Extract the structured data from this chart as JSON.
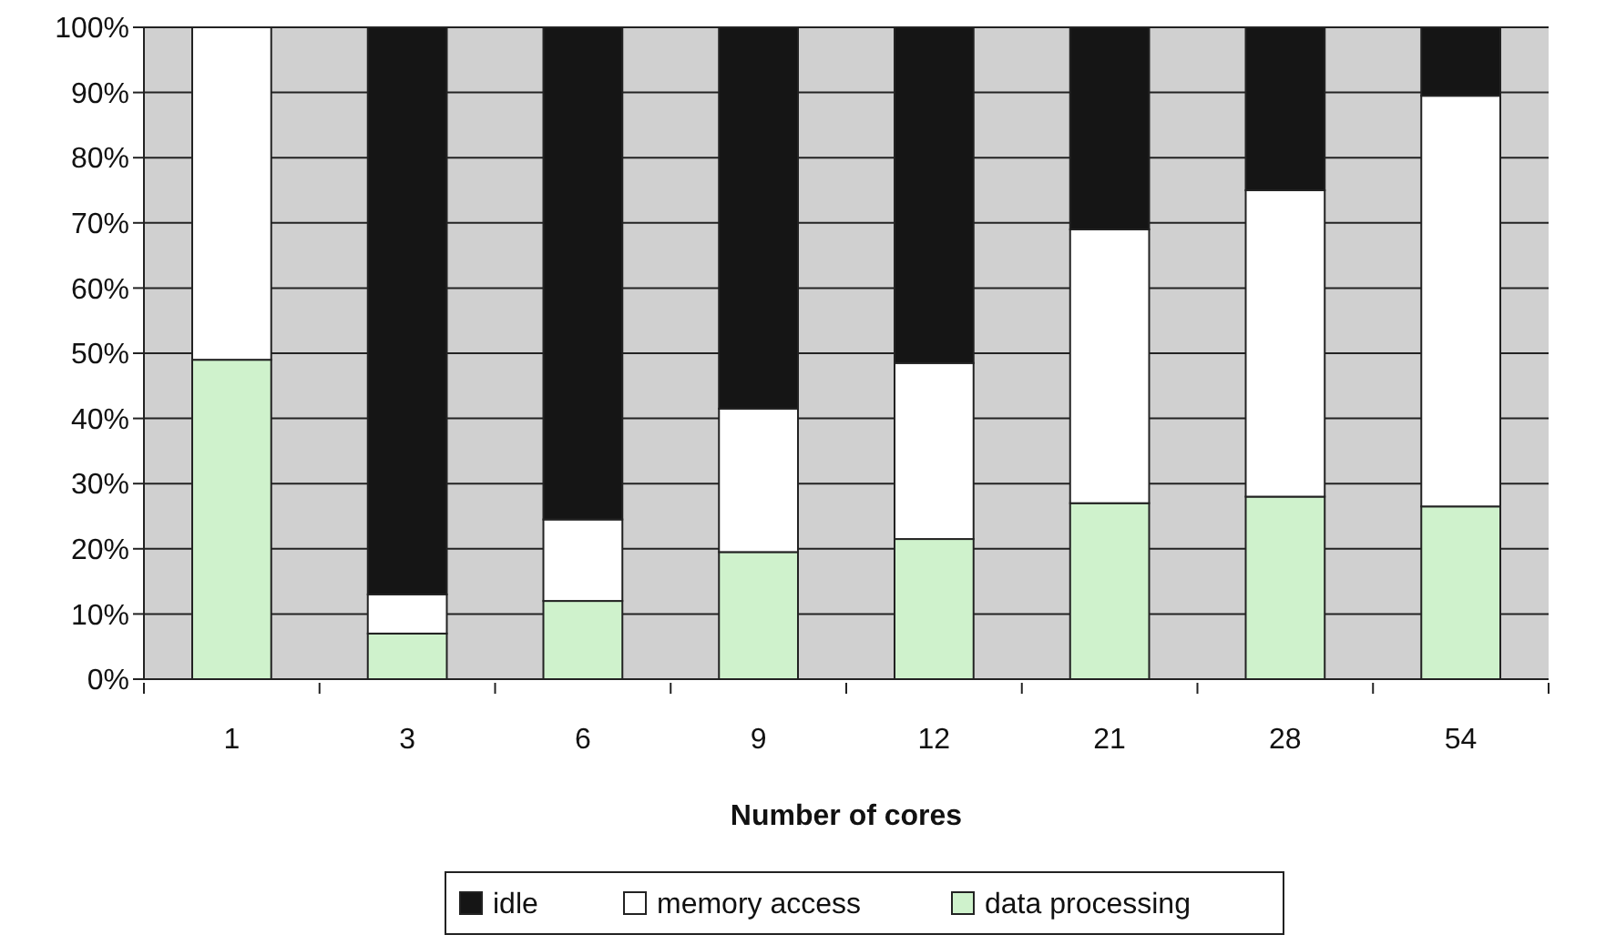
{
  "chart_data": {
    "type": "bar",
    "stacked": true,
    "xlabel": "Number of cores",
    "categories": [
      "1",
      "3",
      "6",
      "9",
      "12",
      "21",
      "28",
      "54"
    ],
    "series": [
      {
        "name": "data processing",
        "color": "#cff2cc",
        "values": [
          49,
          7,
          12,
          19.5,
          21.5,
          27,
          28,
          26.5
        ]
      },
      {
        "name": "memory access",
        "color": "#ffffff",
        "values": [
          51,
          6,
          12.5,
          22,
          27,
          42,
          47,
          63
        ]
      },
      {
        "name": "idle",
        "color": "#151515",
        "values": [
          0,
          87,
          75.5,
          58.5,
          51.5,
          31,
          25,
          10.5
        ]
      }
    ],
    "ylim": [
      0,
      100
    ],
    "yticks": [
      {
        "value": 0,
        "label": "0%"
      },
      {
        "value": 10,
        "label": "10%"
      },
      {
        "value": 20,
        "label": "20%"
      },
      {
        "value": 30,
        "label": "30%"
      },
      {
        "value": 40,
        "label": "40%"
      },
      {
        "value": 50,
        "label": "50%"
      },
      {
        "value": 60,
        "label": "60%"
      },
      {
        "value": 70,
        "label": "70%"
      },
      {
        "value": 80,
        "label": "80%"
      },
      {
        "value": 90,
        "label": "90%"
      },
      {
        "value": 100,
        "label": "100%"
      }
    ],
    "grid": "y",
    "legend": "bottom"
  }
}
